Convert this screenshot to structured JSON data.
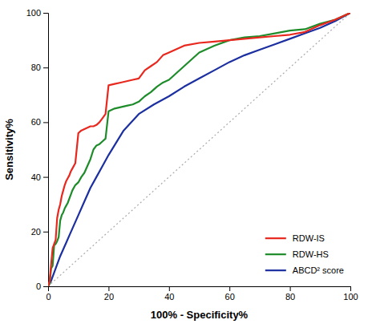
{
  "chart_data": {
    "type": "line",
    "xlabel": "100% - Specificity%",
    "ylabel": "Sensitivity%",
    "xlim": [
      0,
      100
    ],
    "ylim": [
      0,
      100
    ],
    "xticks": [
      0,
      20,
      40,
      60,
      80,
      100
    ],
    "yticks": [
      0,
      20,
      40,
      60,
      80,
      100
    ],
    "grid": false,
    "legend": "lower right",
    "series": [
      {
        "name": "RDW-IS",
        "color": "#e8281e",
        "x": [
          0,
          0.5,
          1.0,
          1.5,
          2.0,
          2.5,
          3.0,
          3.5,
          4.0,
          4.5,
          5.0,
          5.5,
          6.0,
          6.5,
          7.0,
          7.5,
          8.0,
          9.0,
          10.0,
          11.0,
          12.0,
          13.0,
          14.0,
          15.0,
          16.0,
          17.0,
          18.0,
          19.0,
          20.0,
          22.0,
          24.0,
          26.0,
          28.0,
          30.0,
          32.0,
          34.0,
          36.0,
          38.0,
          40.0,
          45.0,
          50.0,
          55.0,
          60.0,
          65.0,
          70.0,
          75.0,
          80.0,
          85.0,
          90.0,
          95.0,
          100.0
        ],
        "values": [
          0,
          2.0,
          8.0,
          14.0,
          15.5,
          17.0,
          25.0,
          28.0,
          30.0,
          33.0,
          35.0,
          37.0,
          38.5,
          39.5,
          40.5,
          42.0,
          43.0,
          45.0,
          56.0,
          57.0,
          57.5,
          58.0,
          58.5,
          58.5,
          59.0,
          60.0,
          61.5,
          63.0,
          73.5,
          74.0,
          74.5,
          75.0,
          75.5,
          76.0,
          79.0,
          80.5,
          82.0,
          84.5,
          85.5,
          88.0,
          89.0,
          89.5,
          90.0,
          90.5,
          91.0,
          91.5,
          92.0,
          93.0,
          95.5,
          97.5,
          100.0
        ]
      },
      {
        "name": "RDW-HS",
        "color": "#1e8c2a",
        "x": [
          0,
          0.5,
          1.0,
          1.5,
          2.0,
          2.5,
          3.0,
          3.5,
          4.0,
          4.5,
          5.0,
          5.5,
          6.0,
          6.5,
          7.0,
          7.5,
          8.0,
          9.0,
          10.0,
          11.0,
          12.0,
          13.0,
          14.0,
          15.0,
          16.0,
          17.0,
          18.0,
          19.0,
          20.0,
          22.0,
          24.0,
          26.0,
          28.0,
          30.0,
          32.0,
          34.0,
          36.0,
          38.0,
          40.0,
          45.0,
          50.0,
          55.0,
          60.0,
          65.0,
          70.0,
          75.0,
          80.0,
          85.0,
          90.0,
          95.0,
          100.0
        ],
        "values": [
          0,
          1.0,
          6.5,
          7.5,
          15.0,
          15.5,
          16.5,
          18.0,
          24.0,
          26.0,
          27.0,
          28.5,
          29.5,
          30.5,
          32.0,
          33.5,
          35.0,
          37.0,
          38.0,
          40.0,
          41.5,
          44.0,
          46.5,
          50.0,
          51.5,
          52.0,
          53.0,
          54.0,
          64.0,
          65.0,
          65.5,
          66.0,
          66.5,
          67.5,
          69.5,
          71.0,
          73.0,
          74.5,
          75.5,
          80.5,
          85.5,
          88.0,
          90.0,
          91.0,
          91.5,
          92.5,
          93.5,
          94.0,
          96.0,
          97.5,
          100.0
        ]
      },
      {
        "name": "ABCD² score",
        "color": "#1c2fa0",
        "x": [
          0,
          1.0,
          2.0,
          3.0,
          4.0,
          5.0,
          6.0,
          7.0,
          8.0,
          9.0,
          10.0,
          12.0,
          14.0,
          16.0,
          18.0,
          20.0,
          25.0,
          30.0,
          35.0,
          40.0,
          45.0,
          50.0,
          55.0,
          60.0,
          65.0,
          70.0,
          75.0,
          80.0,
          85.0,
          90.0,
          95.0,
          100.0
        ],
        "values": [
          0,
          2.0,
          5.0,
          8.0,
          11.0,
          13.5,
          16.0,
          18.5,
          21.0,
          23.5,
          26.0,
          31.0,
          36.0,
          40.0,
          44.0,
          48.0,
          57.0,
          63.0,
          66.5,
          69.5,
          73.0,
          76.0,
          79.0,
          82.0,
          84.5,
          86.5,
          88.5,
          90.5,
          92.5,
          94.5,
          97.0,
          100.0
        ]
      }
    ]
  }
}
